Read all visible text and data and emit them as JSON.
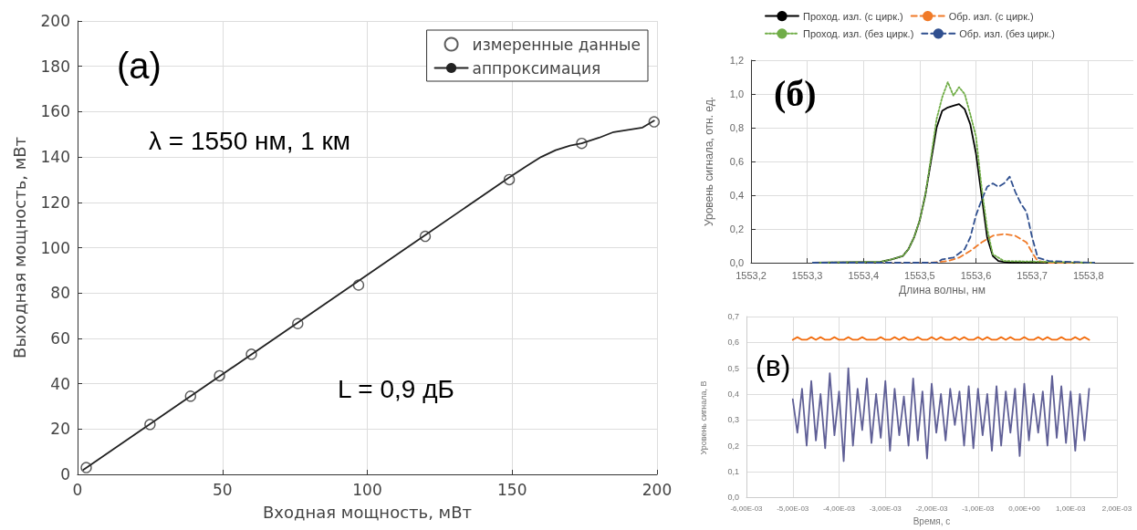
{
  "chart_data": [
    {
      "type": "line",
      "xlabel": "Входная мощность, мВт",
      "ylabel": "Выходная мощность, мВт",
      "xlim": [
        0,
        200
      ],
      "xticks": [
        0,
        50,
        100,
        150,
        200
      ],
      "ylim": [
        0,
        200
      ],
      "yticks": [
        0,
        20,
        40,
        60,
        80,
        100,
        120,
        140,
        160,
        180,
        200
      ],
      "grid": true,
      "legend": "top right",
      "annotations": [
        "(a)",
        "λ = 1550 нм, 1 км",
        "L = 0,9 дБ"
      ],
      "series": [
        {
          "name": "измеренные данные",
          "type": "scatter",
          "marker": "circle",
          "color": "#333333",
          "x": [
            3,
            25,
            39,
            49,
            60,
            76,
            97,
            120,
            149,
            174,
            199
          ],
          "values": [
            3,
            22,
            34.5,
            43.5,
            53,
            66.5,
            83.5,
            105,
            130,
            146,
            155.5
          ]
        },
        {
          "name": "аппроксимация",
          "type": "line",
          "line_style": "solid",
          "color": "#222222",
          "x": [
            2,
            149,
            155,
            160,
            165,
            170,
            174,
            180,
            185,
            190,
            195,
            199
          ],
          "values": [
            2,
            131,
            136,
            140,
            143,
            145,
            146,
            148.5,
            151,
            152,
            153,
            156
          ]
        }
      ]
    },
    {
      "type": "line",
      "xlabel": "Длина волны, нм",
      "ylabel": "Уровень сигнала, отн. ед.",
      "xlim": [
        1553.2,
        1553.88
      ],
      "xticks": [
        {
          "value": 1553.2,
          "label": "1553,2"
        },
        {
          "value": 1553.3,
          "label": "1553,3"
        },
        {
          "value": 1553.4,
          "label": "1553,4"
        },
        {
          "value": 1553.5,
          "label": "1553,5"
        },
        {
          "value": 1553.6,
          "label": "1553,6"
        },
        {
          "value": 1553.7,
          "label": "1553,7"
        },
        {
          "value": 1553.8,
          "label": "1553,8"
        }
      ],
      "ylim": [
        0,
        1.2
      ],
      "yticks": [
        {
          "value": 0,
          "label": "0,0"
        },
        {
          "value": 0.2,
          "label": "0,2"
        },
        {
          "value": 0.4,
          "label": "0,4"
        },
        {
          "value": 0.6,
          "label": "0,6"
        },
        {
          "value": 0.8,
          "label": "0,8"
        },
        {
          "value": 1,
          "label": "1,0"
        },
        {
          "value": 1.2,
          "label": "1,2"
        }
      ],
      "grid": true,
      "legend": "top",
      "marker": "none",
      "annotations": [
        "(б)"
      ],
      "series": [
        {
          "name": "Проход. изл. (с цирк.)",
          "line_style": "solid",
          "color": "#000000",
          "x": [
            1553.31,
            1553.43,
            1553.45,
            1553.47,
            1553.48,
            1553.49,
            1553.5,
            1553.51,
            1553.52,
            1553.53,
            1553.54,
            1553.55,
            1553.56,
            1553.57,
            1553.58,
            1553.59,
            1553.6,
            1553.61,
            1553.62,
            1553.63,
            1553.64,
            1553.66,
            1553.81
          ],
          "values": [
            0,
            0.005,
            0.02,
            0.04,
            0.08,
            0.15,
            0.25,
            0.4,
            0.6,
            0.8,
            0.9,
            0.92,
            0.93,
            0.94,
            0.91,
            0.82,
            0.65,
            0.4,
            0.15,
            0.04,
            0.01,
            0,
            0
          ]
        },
        {
          "name": "Обр. изл. (с цирк.)",
          "line_style": "dashed",
          "color": "#f07a28",
          "x": [
            1553.31,
            1553.52,
            1553.55,
            1553.57,
            1553.59,
            1553.61,
            1553.63,
            1553.65,
            1553.67,
            1553.69,
            1553.7,
            1553.71,
            1553.73,
            1553.81
          ],
          "values": [
            0,
            0,
            0.01,
            0.03,
            0.07,
            0.12,
            0.16,
            0.17,
            0.16,
            0.12,
            0.06,
            0.01,
            0,
            0
          ]
        },
        {
          "name": "Проход. изл. (без цирк.)",
          "line_style": "dotted",
          "color": "#70ad47",
          "x": [
            1553.31,
            1553.43,
            1553.45,
            1553.47,
            1553.48,
            1553.49,
            1553.5,
            1553.51,
            1553.52,
            1553.53,
            1553.54,
            1553.55,
            1553.56,
            1553.57,
            1553.58,
            1553.59,
            1553.6,
            1553.61,
            1553.62,
            1553.63,
            1553.65,
            1553.81
          ],
          "values": [
            0,
            0.005,
            0.02,
            0.04,
            0.08,
            0.15,
            0.25,
            0.4,
            0.62,
            0.85,
            0.98,
            1.07,
            0.99,
            1.04,
            1,
            0.88,
            0.75,
            0.45,
            0.2,
            0.05,
            0.01,
            0
          ]
        },
        {
          "name": "Обр. изл. (без цирк.)",
          "line_style": "dashed",
          "color": "#2f4f8f",
          "x": [
            1553.31,
            1553.53,
            1553.54,
            1553.56,
            1553.58,
            1553.59,
            1553.6,
            1553.61,
            1553.62,
            1553.63,
            1553.64,
            1553.65,
            1553.66,
            1553.67,
            1553.68,
            1553.69,
            1553.7,
            1553.71,
            1553.73,
            1553.81
          ],
          "values": [
            0,
            0,
            0.02,
            0.03,
            0.08,
            0.15,
            0.28,
            0.37,
            0.45,
            0.47,
            0.45,
            0.47,
            0.51,
            0.42,
            0.35,
            0.3,
            0.15,
            0.03,
            0.01,
            0
          ]
        }
      ]
    },
    {
      "type": "line",
      "xlabel": "Время, с",
      "ylabel": "Уровень сигнала, В",
      "categories": [
        "-6,00E-03",
        null,
        null,
        null,
        null,
        null,
        null,
        null,
        null,
        null,
        "-5,00E-03",
        null,
        null,
        null,
        null,
        null,
        null,
        null,
        null,
        null,
        "-4,00E-03",
        null,
        null,
        null,
        null,
        null,
        null,
        null,
        null,
        null,
        "-3,00E-03",
        null,
        null,
        null,
        null,
        null,
        null,
        null,
        null,
        null,
        "-2,00E-03",
        null,
        null,
        null,
        null,
        null,
        null,
        null,
        null,
        null,
        "-1,00E-03",
        null,
        null,
        null,
        null,
        null,
        null,
        null,
        null,
        null,
        "0,00E+00",
        null,
        null,
        null,
        null,
        null,
        null,
        null,
        null,
        null,
        "1,00E-03",
        null,
        null,
        null,
        null,
        null,
        null,
        null,
        null,
        null,
        "2,00E-03"
      ],
      "ylim": [
        0,
        0.7
      ],
      "yticks": [
        {
          "value": 0,
          "label": "0,0"
        },
        {
          "value": 0.1,
          "label": "0,1"
        },
        {
          "value": 0.2,
          "label": "0,2"
        },
        {
          "value": 0.3,
          "label": "0,3"
        },
        {
          "value": 0.4,
          "label": "0,4"
        },
        {
          "value": 0.5,
          "label": "0,5"
        },
        {
          "value": 0.6,
          "label": "0,6"
        },
        {
          "value": 0.7,
          "label": "0,7"
        }
      ],
      "grid": true,
      "marker": "none",
      "annotations": [
        "(в)"
      ],
      "series": [
        {
          "color": "#f26c0d",
          "values": [
            null,
            null,
            null,
            null,
            null,
            null,
            null,
            null,
            null,
            null,
            0.61,
            0.62,
            0.61,
            0.61,
            0.62,
            0.61,
            0.62,
            0.61,
            0.61,
            0.62,
            0.61,
            0.61,
            0.62,
            0.61,
            0.61,
            0.62,
            0.61,
            0.61,
            0.61,
            0.62,
            0.61,
            0.61,
            0.62,
            0.61,
            0.62,
            0.61,
            0.61,
            0.62,
            0.61,
            0.61,
            0.62,
            0.61,
            0.62,
            0.61,
            0.61,
            0.62,
            0.61,
            0.62,
            0.61,
            0.61,
            0.62,
            0.61,
            0.62,
            0.61,
            0.61,
            0.62,
            0.61,
            0.62,
            0.61,
            0.61,
            0.62,
            0.61,
            0.61,
            0.62,
            0.61,
            0.62,
            0.61,
            0.61,
            0.62,
            0.61,
            0.61,
            0.62,
            0.61,
            0.62,
            0.61,
            null,
            null,
            null,
            null,
            null,
            null
          ]
        },
        {
          "color": "#5f5f96",
          "values": [
            null,
            null,
            null,
            null,
            null,
            null,
            null,
            null,
            null,
            null,
            0.38,
            0.25,
            0.42,
            0.2,
            0.45,
            0.22,
            0.4,
            0.19,
            0.48,
            0.24,
            0.41,
            0.14,
            0.5,
            0.2,
            0.42,
            0.26,
            0.46,
            0.21,
            0.4,
            0.23,
            0.45,
            0.18,
            0.42,
            0.24,
            0.39,
            0.2,
            0.46,
            0.22,
            0.41,
            0.15,
            0.44,
            0.25,
            0.4,
            0.22,
            0.42,
            0.28,
            0.41,
            0.2,
            0.43,
            0.19,
            0.42,
            0.24,
            0.4,
            0.18,
            0.43,
            0.2,
            0.41,
            0.25,
            0.42,
            0.16,
            0.44,
            0.22,
            0.4,
            0.25,
            0.41,
            0.2,
            0.47,
            0.23,
            0.43,
            0.21,
            0.41,
            0.18,
            0.4,
            0.22,
            0.42,
            null,
            null,
            null,
            null,
            null,
            null
          ]
        }
      ]
    }
  ]
}
